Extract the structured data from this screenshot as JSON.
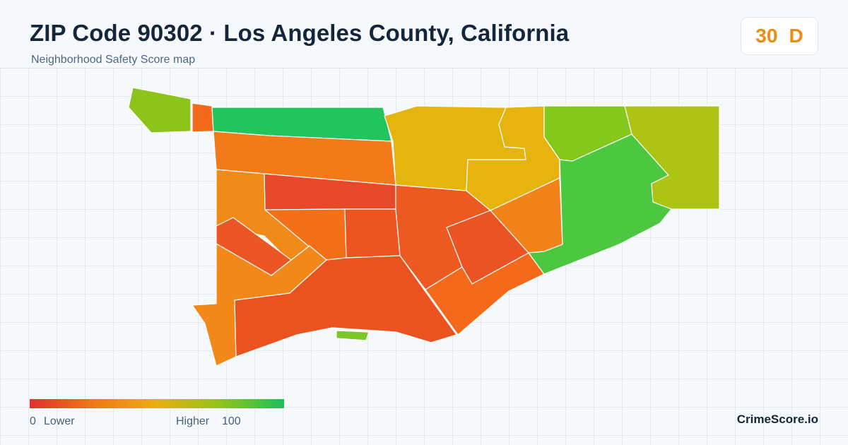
{
  "header": {
    "title": "ZIP Code 90302 · Los Angeles County, California",
    "subtitle": "Neighborhood Safety Score map"
  },
  "score": {
    "value": "30",
    "grade": "D",
    "color": "#ee8b12"
  },
  "legend": {
    "min": "0",
    "low_label": "Lower",
    "high_label": "Higher",
    "max": "100",
    "gradient_colors": [
      "#e0302e",
      "#f07818",
      "#e8b010",
      "#92c418",
      "#1dbf5c"
    ]
  },
  "brand": "CrimeScore.io",
  "map": {
    "regions": [
      {
        "id": "nw-island",
        "color": "#8cc41c"
      },
      {
        "id": "nw-strip",
        "color": "#f46a1b"
      },
      {
        "id": "north-band",
        "color": "#22c45e"
      },
      {
        "id": "north-middle",
        "color": "#f37a18"
      },
      {
        "id": "central-north",
        "color": "#e8492a"
      },
      {
        "id": "west-large",
        "color": "#f08a18"
      },
      {
        "id": "west-diagonal",
        "color": "#eb5624"
      },
      {
        "id": "central-a",
        "color": "#f47018"
      },
      {
        "id": "central-b",
        "color": "#ec5420"
      },
      {
        "id": "south-west",
        "color": "#f2871a"
      },
      {
        "id": "south-central",
        "color": "#ea521f"
      },
      {
        "id": "south-islet",
        "color": "#7cc627"
      },
      {
        "id": "center-east",
        "color": "#ec5a22"
      },
      {
        "id": "center-east-inner",
        "color": "#ea5424"
      },
      {
        "id": "south-east",
        "color": "#f46a1a"
      },
      {
        "id": "north-east-yellow",
        "color": "#e4b50e"
      },
      {
        "id": "north-east-yellow-2",
        "color": "#e6b30f"
      },
      {
        "id": "east-orange",
        "color": "#f2821a"
      },
      {
        "id": "north-east-green",
        "color": "#84c81c"
      },
      {
        "id": "east-green",
        "color": "#4cc840"
      },
      {
        "id": "far-east",
        "color": "#aec414"
      }
    ]
  }
}
